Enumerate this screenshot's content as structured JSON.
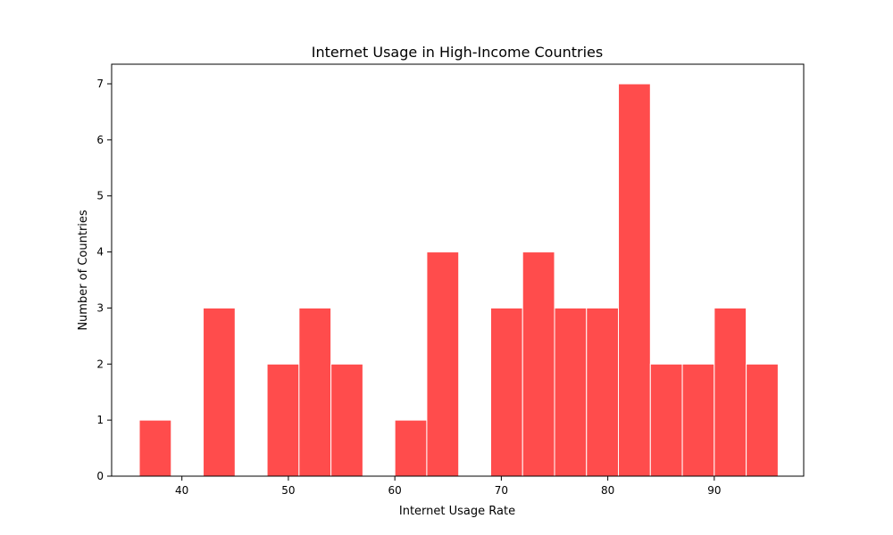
{
  "chart_data": {
    "type": "bar",
    "title": "Internet Usage in High-Income Countries",
    "xlabel": "Internet Usage Rate",
    "ylabel": "Number of Countries",
    "bar_color": "#ff4c4c",
    "xlim": [
      33.4,
      98.4
    ],
    "ylim": [
      0,
      7.35
    ],
    "xticks": [
      40,
      50,
      60,
      70,
      80,
      90
    ],
    "yticks": [
      0,
      1,
      2,
      3,
      4,
      5,
      6,
      7
    ],
    "grid": false,
    "bins": [
      {
        "start": 36.0,
        "end": 39.0,
        "count": 1
      },
      {
        "start": 39.0,
        "end": 42.0,
        "count": 0
      },
      {
        "start": 42.0,
        "end": 45.0,
        "count": 3
      },
      {
        "start": 45.0,
        "end": 48.0,
        "count": 0
      },
      {
        "start": 48.0,
        "end": 51.0,
        "count": 2
      },
      {
        "start": 51.0,
        "end": 54.0,
        "count": 3
      },
      {
        "start": 54.0,
        "end": 57.0,
        "count": 2
      },
      {
        "start": 57.0,
        "end": 60.0,
        "count": 0
      },
      {
        "start": 60.0,
        "end": 63.0,
        "count": 1
      },
      {
        "start": 63.0,
        "end": 66.0,
        "count": 4
      },
      {
        "start": 66.0,
        "end": 69.0,
        "count": 0
      },
      {
        "start": 69.0,
        "end": 72.0,
        "count": 3
      },
      {
        "start": 72.0,
        "end": 75.0,
        "count": 4
      },
      {
        "start": 75.0,
        "end": 78.0,
        "count": 3
      },
      {
        "start": 78.0,
        "end": 81.0,
        "count": 3
      },
      {
        "start": 81.0,
        "end": 84.0,
        "count": 7
      },
      {
        "start": 84.0,
        "end": 87.0,
        "count": 2
      },
      {
        "start": 87.0,
        "end": 90.0,
        "count": 2
      },
      {
        "start": 90.0,
        "end": 93.0,
        "count": 3
      },
      {
        "start": 93.0,
        "end": 96.0,
        "count": 2
      }
    ]
  }
}
